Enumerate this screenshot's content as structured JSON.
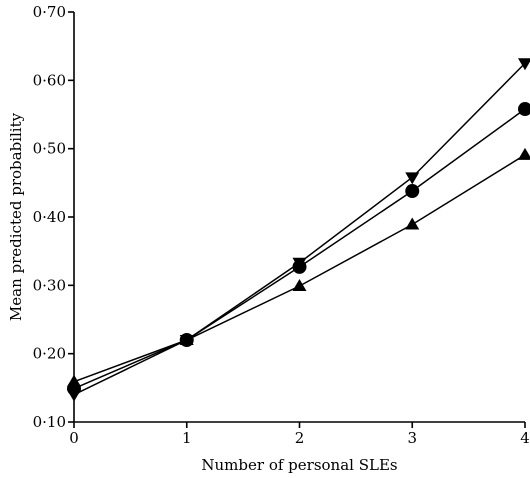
{
  "chart_data": {
    "type": "line",
    "title": "",
    "xlabel": "Number of personal SLEs",
    "ylabel": "Mean predicted probability",
    "x": [
      0,
      1,
      2,
      3,
      4
    ],
    "x_tick_labels": [
      "0",
      "1",
      "2",
      "3",
      "4"
    ],
    "xlim": [
      0,
      4
    ],
    "ylim": [
      0.1,
      0.7
    ],
    "y_ticks": [
      0.1,
      0.2,
      0.3,
      0.4,
      0.5,
      0.6,
      0.7
    ],
    "y_tick_labels": [
      "0·10",
      "0·20",
      "0·30",
      "0·40",
      "0·50",
      "0·60",
      "0·70"
    ],
    "grid": false,
    "legend": "none",
    "series": [
      {
        "marker": "triangle-down",
        "values": [
          0.14,
          0.22,
          0.333,
          0.458,
          0.625
        ]
      },
      {
        "marker": "circle",
        "values": [
          0.149,
          0.22,
          0.327,
          0.438,
          0.558
        ]
      },
      {
        "marker": "triangle-up",
        "values": [
          0.159,
          0.22,
          0.299,
          0.389,
          0.491
        ]
      }
    ]
  }
}
